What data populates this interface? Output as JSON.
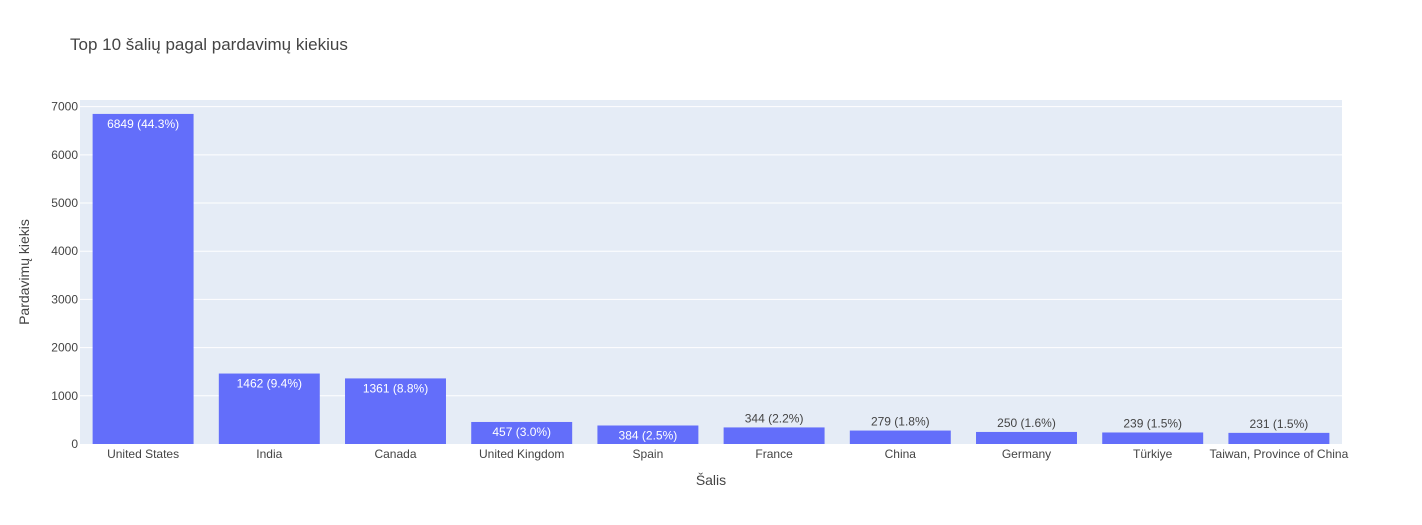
{
  "chart_data": {
    "type": "bar",
    "title": "Top 10 šalių pagal pardavimų kiekius",
    "xlabel": "Šalis",
    "ylabel": "Pardavimų kiekis",
    "categories": [
      "United States",
      "India",
      "Canada",
      "United Kingdom",
      "Spain",
      "France",
      "China",
      "Germany",
      "Türkiye",
      "Taiwan, Province of China"
    ],
    "values": [
      6849,
      1462,
      1361,
      457,
      384,
      344,
      279,
      250,
      239,
      231
    ],
    "data_labels": [
      "6849 (44.3%)",
      "1462 (9.4%)",
      "1361 (8.8%)",
      "457 (3.0%)",
      "384 (2.5%)",
      "344 (2.2%)",
      "279 (1.8%)",
      "250 (1.6%)",
      "239 (1.5%)",
      "231 (1.5%)"
    ],
    "ylim": [
      0,
      7000
    ],
    "yticks": [
      0,
      1000,
      2000,
      3000,
      4000,
      5000,
      6000,
      7000
    ],
    "grid": true,
    "legend": "none",
    "colors": {
      "bar": "#636efa",
      "plot_background": "#e5ecf6",
      "grid": "#ffffff",
      "text": "#444444"
    }
  }
}
